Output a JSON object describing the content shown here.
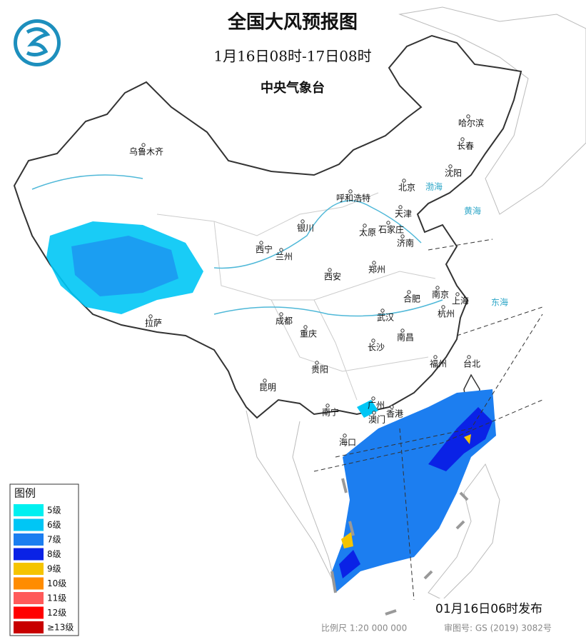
{
  "header": {
    "title": "全国大风预报图",
    "period": "1月16日08时-17日08时",
    "agency": "中央气象台"
  },
  "legend": {
    "title": "图例",
    "items": [
      {
        "label": "5级",
        "color": "#00f0f0"
      },
      {
        "label": "6级",
        "color": "#00c6f5"
      },
      {
        "label": "7级",
        "color": "#1c7ef0"
      },
      {
        "label": "8级",
        "color": "#0a22e6"
      },
      {
        "label": "9级",
        "color": "#f5c400"
      },
      {
        "label": "10级",
        "color": "#ff8c00"
      },
      {
        "label": "11级",
        "color": "#ff5a5a"
      },
      {
        "label": "12级",
        "color": "#ff0000"
      },
      {
        "label": "≥13级",
        "color": "#c80000"
      }
    ]
  },
  "cities": [
    "哈尔滨",
    "长春",
    "沈阳",
    "乌鲁木齐",
    "呼和浩特",
    "北京",
    "天津",
    "太原",
    "石家庄",
    "银川",
    "西宁",
    "兰州",
    "济南",
    "郑州",
    "西安",
    "合肥",
    "南京",
    "上海",
    "杭州",
    "武汉",
    "成都",
    "重庆",
    "南昌",
    "长沙",
    "拉萨",
    "贵阳",
    "福州",
    "台北",
    "昆明",
    "南宁",
    "广州",
    "澳门",
    "香港",
    "海口"
  ],
  "seas": [
    "渤海",
    "黄海",
    "东海"
  ],
  "footer": {
    "issued": "01月16日06时发布",
    "scale": "比例尺 1:20 000 000",
    "review": "审图号: GS (2019) 3082号"
  }
}
